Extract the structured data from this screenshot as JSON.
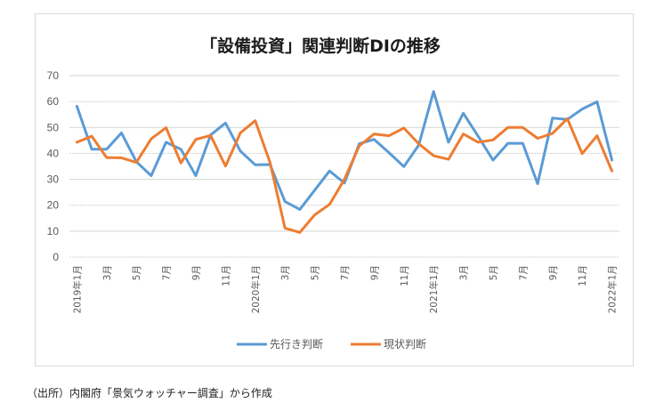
{
  "source_note": "（出所）内閣府「景気ウォッチャー調査」から作成",
  "chart_data": {
    "type": "line",
    "title": "「設備投資」関連判断DIの推移",
    "xlabel": "",
    "ylabel": "",
    "ylim": [
      0,
      70
    ],
    "yticks": [
      0,
      10,
      20,
      30,
      40,
      50,
      60,
      70
    ],
    "grid": true,
    "legend_position": "bottom",
    "x": [
      "2019-01",
      "2019-02",
      "2019-03",
      "2019-04",
      "2019-05",
      "2019-06",
      "2019-07",
      "2019-08",
      "2019-09",
      "2019-10",
      "2019-11",
      "2019-12",
      "2020-01",
      "2020-02",
      "2020-03",
      "2020-04",
      "2020-05",
      "2020-06",
      "2020-07",
      "2020-08",
      "2020-09",
      "2020-10",
      "2020-11",
      "2020-12",
      "2021-01",
      "2021-02",
      "2021-03",
      "2021-04",
      "2021-05",
      "2021-06",
      "2021-07",
      "2021-08",
      "2021-09",
      "2021-10",
      "2021-11",
      "2021-12",
      "2022-01"
    ],
    "tick_labels": [
      "2019年1月",
      "",
      "3月",
      "",
      "5月",
      "",
      "7月",
      "",
      "9月",
      "",
      "11月",
      "",
      "2020年1月",
      "",
      "3月",
      "",
      "5月",
      "",
      "7月",
      "",
      "9月",
      "",
      "11月",
      "",
      "2021年1月",
      "",
      "3月",
      "",
      "5月",
      "",
      "7月",
      "",
      "9月",
      "",
      "11月",
      "",
      "2022年1月"
    ],
    "series": [
      {
        "name": "先行き判断",
        "color": "#5b9bd5",
        "values": [
          58.2,
          41.6,
          41.6,
          47.9,
          36.8,
          31.4,
          44.3,
          41.6,
          31.4,
          47.1,
          51.7,
          40.9,
          35.6,
          35.7,
          21.4,
          18.4,
          25.8,
          33.2,
          28.6,
          43.7,
          45.4,
          40.3,
          34.9,
          43.2,
          63.9,
          44.3,
          55.5,
          46.6,
          37.4,
          43.9,
          43.9,
          28.3,
          53.6,
          53.1,
          57.1,
          59.9,
          37.4
        ]
      },
      {
        "name": "現状判断",
        "color": "#ed7d31",
        "values": [
          44.3,
          46.6,
          38.4,
          38.3,
          36.5,
          45.6,
          49.9,
          36.3,
          45.4,
          46.9,
          35.1,
          47.9,
          52.6,
          36.4,
          11.2,
          9.5,
          16.3,
          20.3,
          30.0,
          42.9,
          47.5,
          46.8,
          49.8,
          43.7,
          39.1,
          37.7,
          47.5,
          44.3,
          45.2,
          50.0,
          50.0,
          45.8,
          47.7,
          53.4,
          39.9,
          46.8,
          33.2
        ]
      }
    ]
  }
}
